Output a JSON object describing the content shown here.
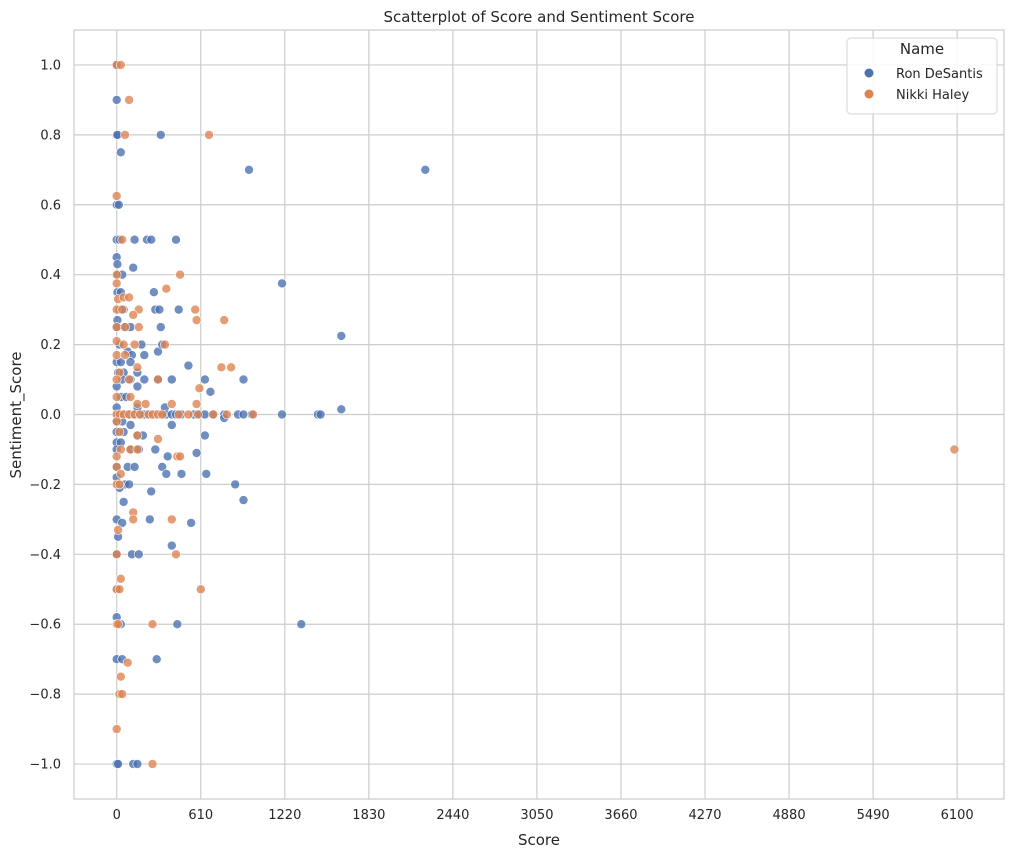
{
  "chart_data": {
    "type": "scatter",
    "title": "Scatterplot of Score and Sentiment Score",
    "xlabel": "Score",
    "ylabel": "Sentiment_Score",
    "xlim": [
      -310,
      6440
    ],
    "ylim": [
      -1.1,
      1.1
    ],
    "xticks": [
      0,
      610,
      1220,
      1830,
      2440,
      3050,
      3660,
      4270,
      4880,
      5490,
      6100
    ],
    "xtick_labels": [
      "0",
      "610",
      "1220",
      "1830",
      "2440",
      "3050",
      "3660",
      "4270",
      "4880",
      "5490",
      "6100"
    ],
    "yticks": [
      -1.0,
      -0.8,
      -0.6,
      -0.4,
      -0.2,
      0.0,
      0.2,
      0.4,
      0.6,
      0.8,
      1.0
    ],
    "ytick_labels": [
      "−1.0",
      "−0.8",
      "−0.6",
      "−0.4",
      "−0.2",
      "0.0",
      "0.2",
      "0.4",
      "0.6",
      "0.8",
      "1.0"
    ],
    "grid": true,
    "legend": {
      "title": "Name",
      "placement": "top-right"
    },
    "series": [
      {
        "name": "Ron DeSantis",
        "color": "#4c72b0",
        "points": [
          [
            0,
            1.0
          ],
          [
            0,
            0.9
          ],
          [
            0,
            0.8
          ],
          [
            5,
            0.8
          ],
          [
            30,
            0.75
          ],
          [
            320,
            0.8
          ],
          [
            960,
            0.7
          ],
          [
            2240,
            0.7
          ],
          [
            0,
            0.6
          ],
          [
            15,
            0.6
          ],
          [
            0,
            0.5
          ],
          [
            20,
            0.5
          ],
          [
            130,
            0.5
          ],
          [
            220,
            0.5
          ],
          [
            250,
            0.5
          ],
          [
            430,
            0.5
          ],
          [
            0,
            0.45
          ],
          [
            5,
            0.43
          ],
          [
            10,
            0.4
          ],
          [
            40,
            0.4
          ],
          [
            120,
            0.42
          ],
          [
            1200,
            0.375
          ],
          [
            5,
            0.35
          ],
          [
            30,
            0.35
          ],
          [
            270,
            0.35
          ],
          [
            20,
            0.3
          ],
          [
            50,
            0.3
          ],
          [
            280,
            0.3
          ],
          [
            310,
            0.3
          ],
          [
            450,
            0.3
          ],
          [
            5,
            0.27
          ],
          [
            0,
            0.25
          ],
          [
            60,
            0.25
          ],
          [
            100,
            0.25
          ],
          [
            320,
            0.25
          ],
          [
            1630,
            0.225
          ],
          [
            20,
            0.2
          ],
          [
            80,
            0.18
          ],
          [
            180,
            0.2
          ],
          [
            300,
            0.18
          ],
          [
            330,
            0.2
          ],
          [
            110,
            0.17
          ],
          [
            200,
            0.17
          ],
          [
            0,
            0.15
          ],
          [
            30,
            0.15
          ],
          [
            100,
            0.15
          ],
          [
            520,
            0.14
          ],
          [
            10,
            0.12
          ],
          [
            50,
            0.12
          ],
          [
            150,
            0.12
          ],
          [
            40,
            0.1
          ],
          [
            100,
            0.1
          ],
          [
            200,
            0.1
          ],
          [
            300,
            0.1
          ],
          [
            400,
            0.1
          ],
          [
            640,
            0.1
          ],
          [
            920,
            0.1
          ],
          [
            0,
            0.08
          ],
          [
            150,
            0.08
          ],
          [
            680,
            0.065
          ],
          [
            30,
            0.05
          ],
          [
            70,
            0.05
          ],
          [
            0,
            0.02
          ],
          [
            150,
            0.02
          ],
          [
            350,
            0.02
          ],
          [
            1630,
            0.015
          ],
          [
            0,
            0.0
          ],
          [
            10,
            0.0
          ],
          [
            30,
            0.0
          ],
          [
            60,
            0.0
          ],
          [
            90,
            0.0
          ],
          [
            120,
            0.0
          ],
          [
            160,
            0.0
          ],
          [
            200,
            0.0
          ],
          [
            240,
            0.0
          ],
          [
            280,
            0.0
          ],
          [
            320,
            0.0
          ],
          [
            360,
            0.0
          ],
          [
            400,
            0.0
          ],
          [
            430,
            0.0
          ],
          [
            470,
            0.0
          ],
          [
            560,
            0.0
          ],
          [
            600,
            0.0
          ],
          [
            640,
            0.0
          ],
          [
            700,
            0.0
          ],
          [
            780,
            0.0
          ],
          [
            880,
            0.0
          ],
          [
            920,
            0.0
          ],
          [
            980,
            0.0
          ],
          [
            1200,
            0.0
          ],
          [
            1460,
            0.0
          ],
          [
            1480,
            0.0
          ],
          [
            780,
            -0.01
          ],
          [
            0,
            -0.02
          ],
          [
            40,
            -0.02
          ],
          [
            100,
            -0.03
          ],
          [
            400,
            -0.03
          ],
          [
            0,
            -0.05
          ],
          [
            50,
            -0.05
          ],
          [
            150,
            -0.06
          ],
          [
            190,
            -0.06
          ],
          [
            640,
            -0.06
          ],
          [
            0,
            -0.08
          ],
          [
            30,
            -0.08
          ],
          [
            0,
            -0.1
          ],
          [
            100,
            -0.1
          ],
          [
            160,
            -0.1
          ],
          [
            280,
            -0.1
          ],
          [
            370,
            -0.12
          ],
          [
            580,
            -0.11
          ],
          [
            0,
            -0.15
          ],
          [
            80,
            -0.15
          ],
          [
            130,
            -0.15
          ],
          [
            330,
            -0.15
          ],
          [
            360,
            -0.17
          ],
          [
            470,
            -0.17
          ],
          [
            650,
            -0.17
          ],
          [
            0,
            -0.18
          ],
          [
            10,
            -0.2
          ],
          [
            60,
            -0.2
          ],
          [
            90,
            -0.2
          ],
          [
            860,
            -0.2
          ],
          [
            20,
            -0.21
          ],
          [
            250,
            -0.22
          ],
          [
            920,
            -0.245
          ],
          [
            50,
            -0.25
          ],
          [
            0,
            -0.3
          ],
          [
            240,
            -0.3
          ],
          [
            40,
            -0.31
          ],
          [
            540,
            -0.31
          ],
          [
            10,
            -0.35
          ],
          [
            400,
            -0.375
          ],
          [
            0,
            -0.4
          ],
          [
            110,
            -0.4
          ],
          [
            160,
            -0.4
          ],
          [
            0,
            -0.5
          ],
          [
            440,
            -0.6
          ],
          [
            1340,
            -0.6
          ],
          [
            0,
            -0.58
          ],
          [
            30,
            -0.6
          ],
          [
            0,
            -0.7
          ],
          [
            40,
            -0.7
          ],
          [
            290,
            -0.7
          ],
          [
            0,
            -1.0
          ],
          [
            10,
            -1.0
          ],
          [
            120,
            -1.0
          ],
          [
            150,
            -1.0
          ]
        ]
      },
      {
        "name": "Nikki Haley",
        "color": "#dd8452",
        "points": [
          [
            0,
            1.0
          ],
          [
            30,
            1.0
          ],
          [
            90,
            0.9
          ],
          [
            60,
            0.8
          ],
          [
            670,
            0.8
          ],
          [
            0,
            0.625
          ],
          [
            40,
            0.5
          ],
          [
            460,
            0.4
          ],
          [
            0,
            0.4
          ],
          [
            0,
            0.375
          ],
          [
            10,
            0.33
          ],
          [
            50,
            0.335
          ],
          [
            90,
            0.335
          ],
          [
            360,
            0.36
          ],
          [
            0,
            0.3
          ],
          [
            40,
            0.3
          ],
          [
            160,
            0.3
          ],
          [
            570,
            0.3
          ],
          [
            120,
            0.285
          ],
          [
            580,
            0.27
          ],
          [
            780,
            0.27
          ],
          [
            0,
            0.25
          ],
          [
            60,
            0.25
          ],
          [
            160,
            0.25
          ],
          [
            0,
            0.21
          ],
          [
            50,
            0.2
          ],
          [
            130,
            0.2
          ],
          [
            350,
            0.2
          ],
          [
            0,
            0.17
          ],
          [
            60,
            0.17
          ],
          [
            150,
            0.135
          ],
          [
            760,
            0.135
          ],
          [
            830,
            0.135
          ],
          [
            20,
            0.12
          ],
          [
            0,
            0.1
          ],
          [
            90,
            0.1
          ],
          [
            300,
            0.1
          ],
          [
            600,
            0.075
          ],
          [
            0,
            0.05
          ],
          [
            100,
            0.05
          ],
          [
            150,
            0.03
          ],
          [
            210,
            0.03
          ],
          [
            400,
            0.03
          ],
          [
            580,
            0.03
          ],
          [
            0,
            0.0
          ],
          [
            20,
            0.0
          ],
          [
            50,
            0.0
          ],
          [
            90,
            0.0
          ],
          [
            130,
            0.0
          ],
          [
            170,
            0.0
          ],
          [
            230,
            0.0
          ],
          [
            260,
            0.0
          ],
          [
            300,
            0.0
          ],
          [
            330,
            0.0
          ],
          [
            450,
            0.0
          ],
          [
            520,
            0.0
          ],
          [
            590,
            0.0
          ],
          [
            700,
            0.0
          ],
          [
            800,
            0.0
          ],
          [
            990,
            0.0
          ],
          [
            0,
            -0.02
          ],
          [
            20,
            -0.05
          ],
          [
            150,
            -0.06
          ],
          [
            300,
            -0.07
          ],
          [
            30,
            -0.1
          ],
          [
            100,
            -0.1
          ],
          [
            150,
            -0.1
          ],
          [
            6080,
            -0.1
          ],
          [
            0,
            -0.12
          ],
          [
            440,
            -0.12
          ],
          [
            460,
            -0.12
          ],
          [
            0,
            -0.15
          ],
          [
            30,
            -0.17
          ],
          [
            0,
            -0.2
          ],
          [
            20,
            -0.2
          ],
          [
            120,
            -0.28
          ],
          [
            120,
            -0.3
          ],
          [
            400,
            -0.3
          ],
          [
            10,
            -0.33
          ],
          [
            0,
            -0.4
          ],
          [
            430,
            -0.4
          ],
          [
            30,
            -0.47
          ],
          [
            0,
            -0.5
          ],
          [
            20,
            -0.5
          ],
          [
            610,
            -0.5
          ],
          [
            0,
            -0.6
          ],
          [
            10,
            -0.6
          ],
          [
            260,
            -0.6
          ],
          [
            80,
            -0.71
          ],
          [
            30,
            -0.75
          ],
          [
            20,
            -0.8
          ],
          [
            40,
            -0.8
          ],
          [
            0,
            -0.9
          ],
          [
            260,
            -1.0
          ]
        ]
      }
    ]
  }
}
